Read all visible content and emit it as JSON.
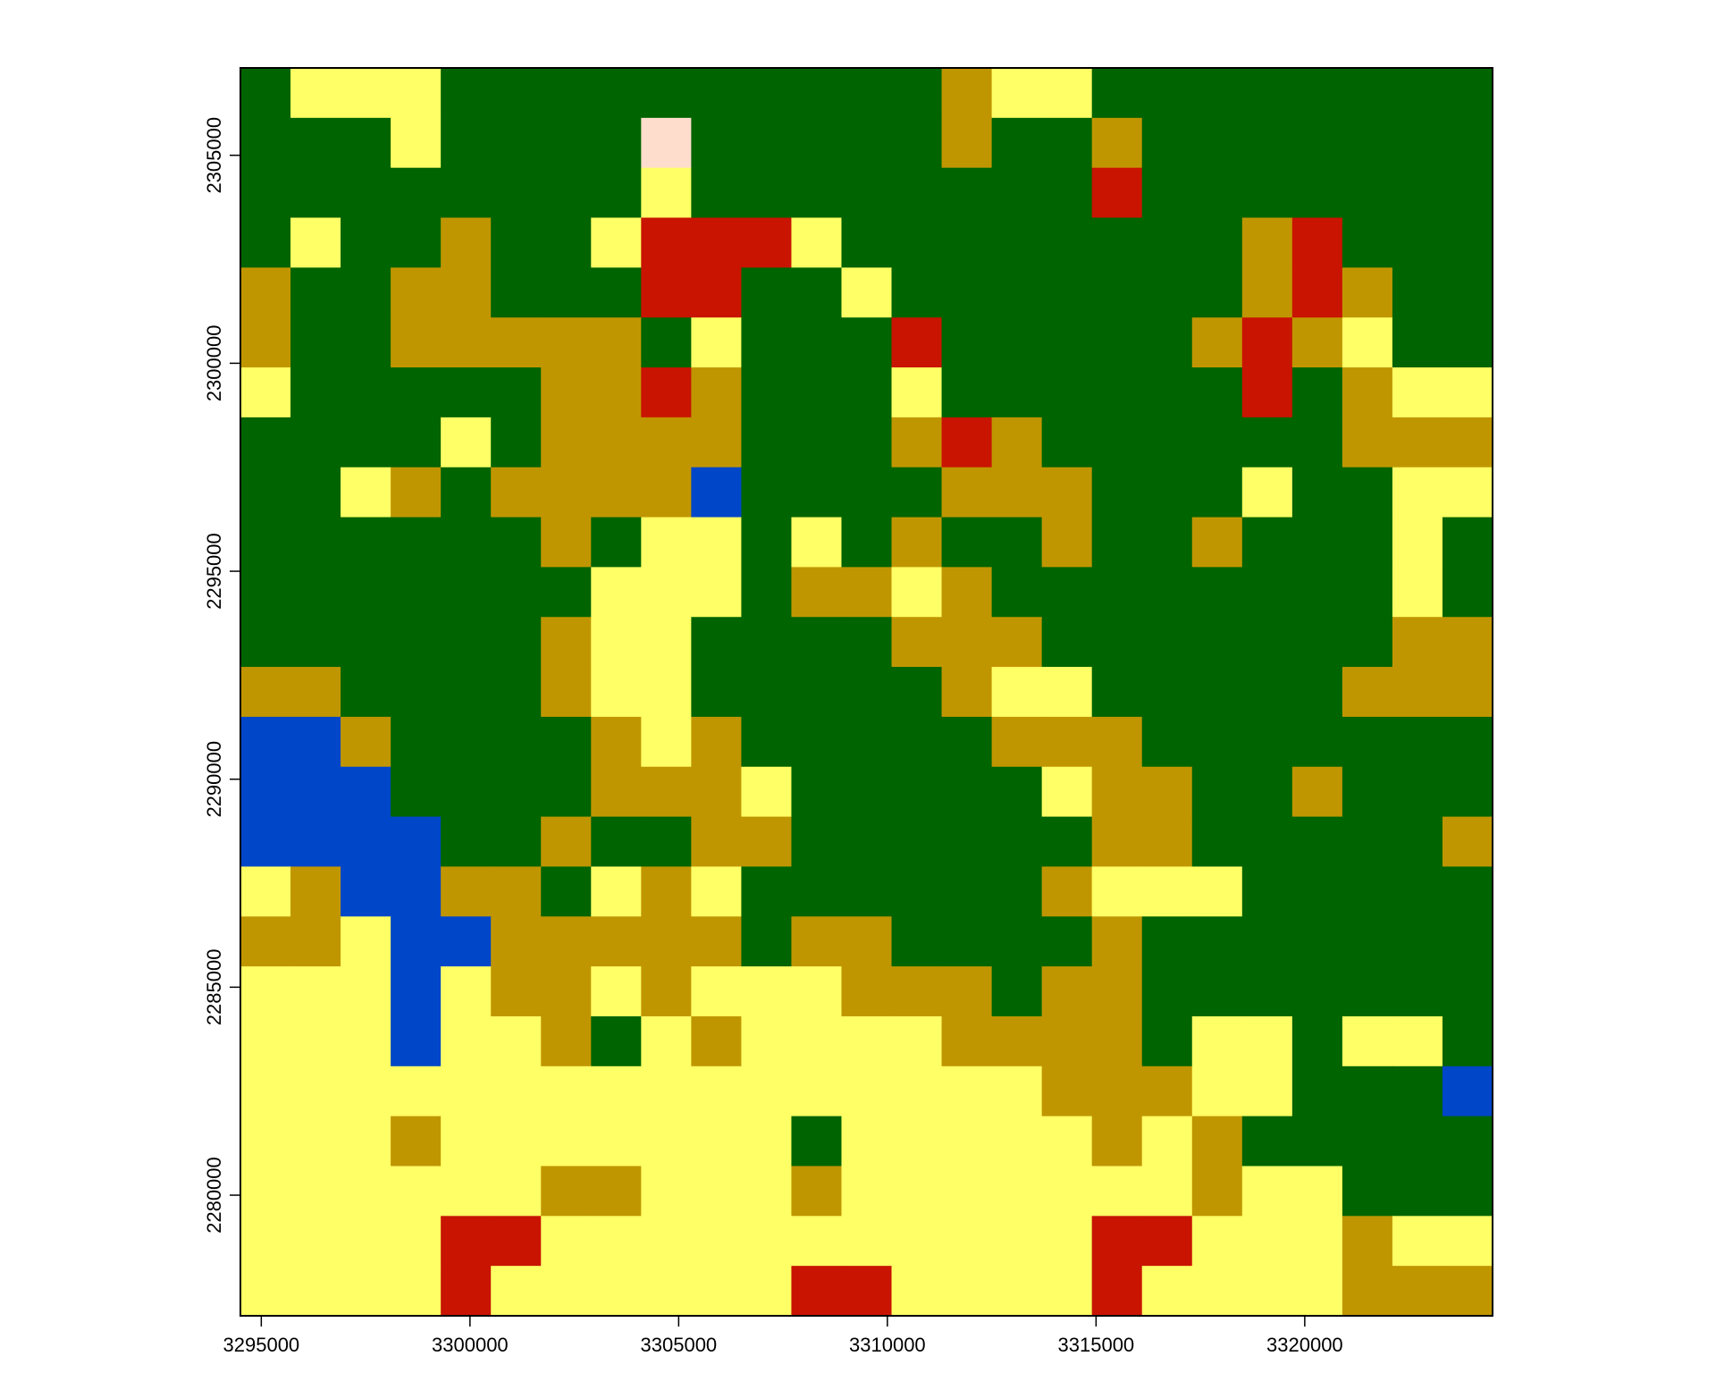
{
  "chart_data": {
    "type": "heatmap",
    "title": "",
    "xlabel": "",
    "ylabel": "",
    "xlim": [
      3294500,
      3324500
    ],
    "ylim": [
      2277100,
      2307100
    ],
    "x_ticks": [
      3295000,
      3300000,
      3305000,
      3310000,
      3315000,
      3320000
    ],
    "y_ticks": [
      2280000,
      2285000,
      2290000,
      2295000,
      2300000,
      2305000
    ],
    "x_tick_labels": [
      "3295000",
      "3300000",
      "3305000",
      "3310000",
      "3315000",
      "3320000"
    ],
    "y_tick_labels": [
      "2280000",
      "2285000",
      "2290000",
      "2295000",
      "2300000",
      "2305000"
    ],
    "grid": false,
    "legend": "none",
    "class_colors": {
      "G": "#006400",
      "Y": "#FFFF66",
      "O": "#C09600",
      "R": "#C81400",
      "B": "#0046C8",
      "P": "#FFDDCC"
    },
    "raster_rows_top_to_bottom": [
      "GYYYGGGGGGGGGGOYYGGGGGGGG",
      "GGGYGGGGPGGGGGOGGOGGGGGGG",
      "GGGGGGGGYGGGGGGGGRGGGGGGG",
      "GYGGOGGYRRRYGGGGGGGGORGGG",
      "OGGOOGGGRRGGYGGGGGGGOROGG",
      "OGGOOOOOGYGGGRGGGGGOROYGG",
      "YGGGGGOOROGGGYGGGGGGRGOYY",
      "GGGGYGOOOOGGGOROGGGGGGOOO",
      "GGYOGOOOOBGGGGOOOGGGYGGYY",
      "GGGGGGOGYYGYGOGGOGGOGGGYG",
      "GGGGGGGYYYGOOYOGGGGGGGGYG",
      "GGGGGGOYYGGGGOOOGGGGGGGOO",
      "OOGGGGOYYGGGGGOYYGGGGGOOO",
      "BBOGGGGOYOGGGGGOOOGGGGGGG",
      "BBBGGGGOOOYGGGGGYOOGGOGGG",
      "BBBBGGOGGOOGGGGGGOOGGGGGO",
      "YOBBOOGYOYGGGGGGOYYYGGGGG",
      "OOYBBOOOOOGOOGGGGOGGGGGGG",
      "YYYBYOOYOYYYOOOGOOGGGGGGG",
      "YYYBYYOGYOYYYYOOOOGYYGYYG",
      "YYYYYYYYYYYYYYYYOOOYYGGGB",
      "YYYOYYYYYYYGYYYYYOYOGGGGG",
      "YYYYYYOOYYYOYYYYYYYOYYGGG",
      "YYYYRRYYYYYYYYYYYRRYYYOYY",
      "YYYYRYYYYYYRRYYYYRYYYYOOO"
    ]
  }
}
